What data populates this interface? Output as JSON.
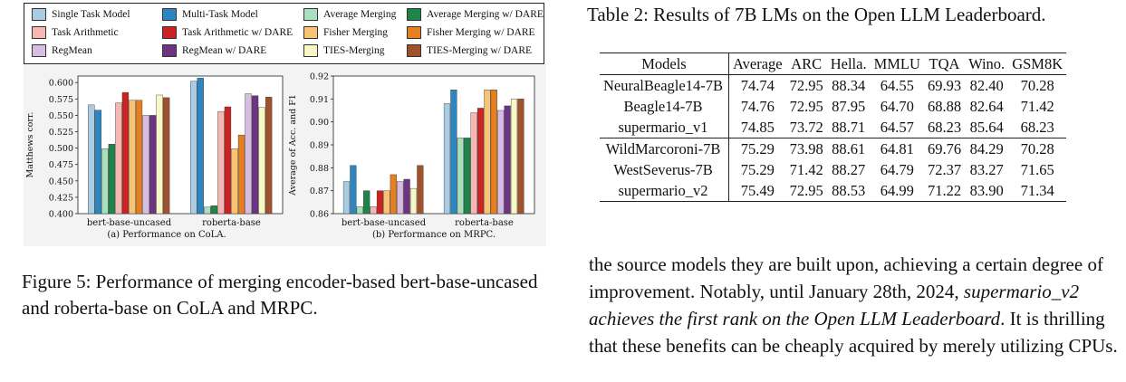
{
  "legend": [
    {
      "label": "Single Task Model",
      "color": "#a9cce3",
      "pattern": "diag"
    },
    {
      "label": "Multi-Task Model",
      "color": "#2e86c1",
      "pattern": "none"
    },
    {
      "label": "Average Merging",
      "color": "#a9dfbf",
      "pattern": "hlines"
    },
    {
      "label": "Average Merging w/ DARE",
      "color": "#1e8449",
      "pattern": "vlines"
    },
    {
      "label": "Task Arithmetic",
      "color": "#f5b7b1",
      "pattern": "dots"
    },
    {
      "label": "Task Arithmetic w/ DARE",
      "color": "#cb2222",
      "pattern": "dots"
    },
    {
      "label": "Fisher Merging",
      "color": "#f8c471",
      "pattern": "diag2"
    },
    {
      "label": "Fisher Merging w/ DARE",
      "color": "#e67e22",
      "pattern": "none"
    },
    {
      "label": "RegMean",
      "color": "#d7bde2",
      "pattern": "circles"
    },
    {
      "label": "RegMean w/ DARE",
      "color": "#6c3483",
      "pattern": "circles"
    },
    {
      "label": "TIES-Merging",
      "color": "#f9f7c5",
      "pattern": "vlines2"
    },
    {
      "label": "TIES-Merging w/ DARE",
      "color": "#a0522d",
      "pattern": "cross"
    }
  ],
  "chart_data": [
    {
      "type": "bar",
      "ylabel": "Matthews corr.",
      "categories": [
        "bert-base-uncased",
        "roberta-base"
      ],
      "ylim": [
        0.4,
        0.61
      ],
      "yticks": [
        "0.400",
        "0.425",
        "0.450",
        "0.475",
        "0.500",
        "0.525",
        "0.550",
        "0.575",
        "0.600"
      ],
      "series": [
        {
          "name": "Single Task Model",
          "values": [
            0.566,
            0.602
          ]
        },
        {
          "name": "Multi-Task Model",
          "values": [
            0.558,
            0.607
          ]
        },
        {
          "name": "Average Merging",
          "values": [
            0.499,
            0.41
          ]
        },
        {
          "name": "Average Merging w/ DARE",
          "values": [
            0.506,
            0.412
          ]
        },
        {
          "name": "Task Arithmetic",
          "values": [
            0.569,
            0.556
          ]
        },
        {
          "name": "Task Arithmetic w/ DARE",
          "values": [
            0.585,
            0.563
          ]
        },
        {
          "name": "Fisher Merging",
          "values": [
            0.573,
            0.499
          ]
        },
        {
          "name": "Fisher Merging w/ DARE",
          "values": [
            0.573,
            0.52
          ]
        },
        {
          "name": "RegMean",
          "values": [
            0.55,
            0.583
          ]
        },
        {
          "name": "RegMean w/ DARE",
          "values": [
            0.55,
            0.58
          ]
        },
        {
          "name": "TIES-Merging",
          "values": [
            0.581,
            0.562
          ]
        },
        {
          "name": "TIES-Merging w/ DARE",
          "values": [
            0.577,
            0.578
          ]
        }
      ],
      "caption": "(a) Performance on CoLA."
    },
    {
      "type": "bar",
      "ylabel": "Average of Acc. and F1",
      "categories": [
        "bert-base-uncased",
        "roberta-base"
      ],
      "ylim": [
        0.86,
        0.92
      ],
      "yticks": [
        "0.86",
        "0.87",
        "0.88",
        "0.89",
        "0.90",
        "0.91",
        "0.92"
      ],
      "series": [
        {
          "name": "Single Task Model",
          "values": [
            0.874,
            0.908
          ]
        },
        {
          "name": "Multi-Task Model",
          "values": [
            0.881,
            0.914
          ]
        },
        {
          "name": "Average Merging",
          "values": [
            0.863,
            0.893
          ]
        },
        {
          "name": "Average Merging w/ DARE",
          "values": [
            0.87,
            0.893
          ]
        },
        {
          "name": "Task Arithmetic",
          "values": [
            0.863,
            0.904
          ]
        },
        {
          "name": "Task Arithmetic w/ DARE",
          "values": [
            0.87,
            0.906
          ]
        },
        {
          "name": "Fisher Merging",
          "values": [
            0.87,
            0.914
          ]
        },
        {
          "name": "Fisher Merging w/ DARE",
          "values": [
            0.877,
            0.914
          ]
        },
        {
          "name": "RegMean",
          "values": [
            0.874,
            0.905
          ]
        },
        {
          "name": "RegMean w/ DARE",
          "values": [
            0.875,
            0.907
          ]
        },
        {
          "name": "TIES-Merging",
          "values": [
            0.871,
            0.91
          ]
        },
        {
          "name": "TIES-Merging w/ DARE",
          "values": [
            0.881,
            0.91
          ]
        }
      ],
      "caption": "(b) Performance on MRPC."
    }
  ],
  "figure_caption": "Figure 5: Performance of merging encoder-based bert-base-uncased and roberta-base on CoLA and MRPC.",
  "table": {
    "title": "Table 2: Results of 7B LMs on the Open LLM Leaderboard.",
    "headers": [
      "Models",
      "Average",
      "ARC",
      "Hella.",
      "MMLU",
      "TQA",
      "Wino.",
      "GSM8K"
    ],
    "rows": [
      [
        "NeuralBeagle14-7B",
        "74.74",
        "72.95",
        "88.34",
        "64.55",
        "69.93",
        "82.40",
        "70.28"
      ],
      [
        "Beagle14-7B",
        "74.76",
        "72.95",
        "87.95",
        "64.70",
        "68.88",
        "82.64",
        "71.42"
      ],
      [
        "supermario_v1",
        "74.85",
        "73.72",
        "88.71",
        "64.57",
        "68.23",
        "85.64",
        "68.23"
      ],
      [
        "WildMarcoroni-7B",
        "75.29",
        "73.98",
        "88.61",
        "64.81",
        "69.76",
        "84.29",
        "70.28"
      ],
      [
        "WestSeverus-7B",
        "75.29",
        "71.42",
        "88.27",
        "64.79",
        "72.37",
        "83.27",
        "71.65"
      ],
      [
        "supermario_v2",
        "75.49",
        "72.95",
        "88.53",
        "64.99",
        "71.22",
        "83.90",
        "71.34"
      ]
    ]
  },
  "paragraph": {
    "p1": "the source models they are built upon, achieving a certain degree of improvement. Notably, until January 28th, 2024,",
    "p2": "supermario_v2 achieves the first rank on the Open LLM Leaderboard",
    "p3": ". It is thrilling that these benefits can be cheaply acquired by merely utilizing CPUs."
  }
}
